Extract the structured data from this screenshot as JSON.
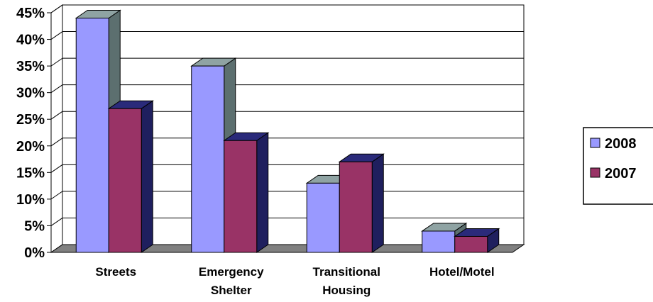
{
  "chart_data": {
    "type": "bar",
    "categories": [
      "Streets",
      "Emergency Shelter",
      "Transitional Housing",
      "Hotel/Motel"
    ],
    "category_lines": [
      [
        "Streets"
      ],
      [
        "Emergency",
        "Shelter"
      ],
      [
        "Transitional",
        "Housing"
      ],
      [
        "Hotel/Motel"
      ]
    ],
    "series": [
      {
        "name": "2008",
        "values": [
          44,
          35,
          13,
          4
        ],
        "color": "#9999ff",
        "top_color": "#8fa3a3",
        "side_color": "#5c6f6f"
      },
      {
        "name": "2007",
        "values": [
          27,
          21,
          17,
          3
        ],
        "color": "#993366",
        "top_color": "#2a2a7a",
        "side_color": "#1f1f5e"
      }
    ],
    "ylim": [
      0,
      45
    ],
    "y_ticks": [
      "0%",
      "5%",
      "10%",
      "15%",
      "20%",
      "25%",
      "30%",
      "35%",
      "40%",
      "45%"
    ],
    "grid": true,
    "three_d": true,
    "legend_position": "right",
    "floor_color": "#808080"
  }
}
